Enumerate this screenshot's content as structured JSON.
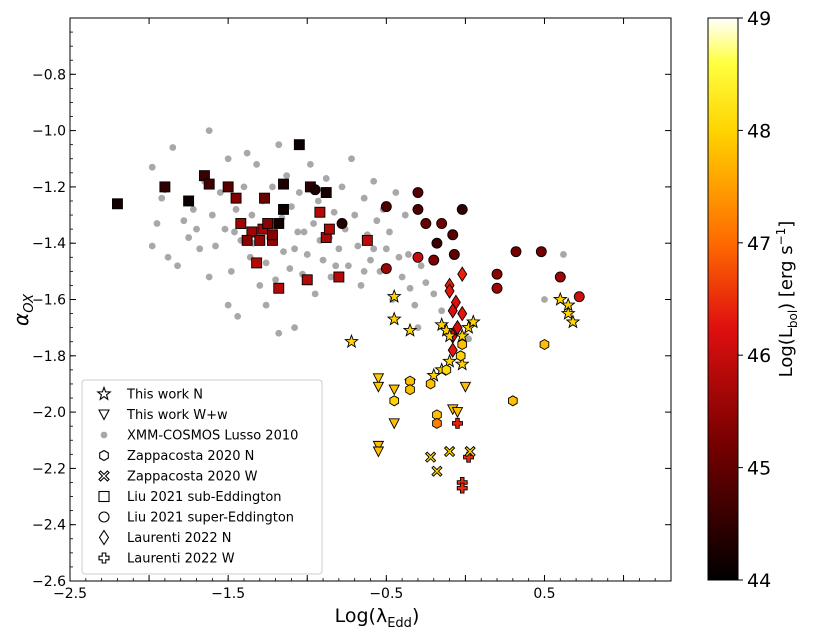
{
  "chart_data": {
    "type": "scatter",
    "title": "",
    "xlabel_main": "Log(λ",
    "xlabel_sub": "Edd",
    "xlabel_close": ")",
    "ylabel_main": "α",
    "ylabel_sub": "OX",
    "xlim": [
      -2.5,
      1.3
    ],
    "ylim": [
      -2.6,
      -0.6
    ],
    "x_ticks": [
      -2.5,
      -2.0,
      -1.5,
      -1.0,
      -0.5,
      0.0,
      0.5,
      1.0
    ],
    "x_tick_labels": [
      "−2.5",
      "",
      "−1.5",
      "",
      "−0.5",
      "",
      "0.5",
      ""
    ],
    "y_ticks": [
      -2.6,
      -2.4,
      -2.2,
      -2.0,
      -1.8,
      -1.6,
      -1.4,
      -1.2,
      -1.0,
      -0.8
    ],
    "y_tick_labels": [
      "−2.6",
      "−2.4",
      "−2.2",
      "−2.0",
      "−1.8",
      "−1.6",
      "−1.4",
      "−1.2",
      "−1.0",
      "−0.8"
    ],
    "colorbar": {
      "label_main": "Log(L",
      "label_sub": "bol",
      "label_close": ") [erg s",
      "label_sup": "−1",
      "label_end": "]",
      "range": [
        44,
        49
      ],
      "ticks": [
        44,
        45,
        46,
        47,
        48,
        49
      ],
      "tick_labels": [
        "44",
        "45",
        "46",
        "47",
        "48",
        "49"
      ]
    },
    "legend": {
      "position": "lower-left",
      "entries": [
        {
          "label": "This work N",
          "marker": "star"
        },
        {
          "label": "This work W+w",
          "marker": "triangle-down"
        },
        {
          "label": "XMM-COSMOS Lusso 2010",
          "marker": "circle-gray"
        },
        {
          "label": "Zappacosta 2020 N",
          "marker": "hexagon"
        },
        {
          "label": "Zappacosta 2020 W",
          "marker": "x-cross"
        },
        {
          "label": "Liu 2021 sub-Eddington",
          "marker": "square"
        },
        {
          "label": "Liu 2021 super-Eddington",
          "marker": "circle"
        },
        {
          "label": "Laurenti 2022 N",
          "marker": "diamond"
        },
        {
          "label": "Laurenti 2022 W",
          "marker": "plus"
        }
      ]
    },
    "series": [
      {
        "name": "XMM-COSMOS Lusso 2010",
        "marker": "circle-gray",
        "color": "#a8a8a8",
        "points": [
          [
            -1.85,
            -1.06
          ],
          [
            -1.78,
            -1.32
          ],
          [
            -1.9,
            -1.21
          ],
          [
            -1.95,
            -1.33
          ],
          [
            -1.98,
            -1.41
          ],
          [
            -1.88,
            -1.45
          ],
          [
            -1.82,
            -1.48
          ],
          [
            -1.75,
            -1.38
          ],
          [
            -1.72,
            -1.28
          ],
          [
            -1.7,
            -1.35
          ],
          [
            -1.68,
            -1.42
          ],
          [
            -1.65,
            -1.18
          ],
          [
            -1.62,
            -1.52
          ],
          [
            -1.6,
            -1.3
          ],
          [
            -1.58,
            -1.41
          ],
          [
            -1.55,
            -1.22
          ],
          [
            -1.52,
            -1.35
          ],
          [
            -1.5,
            -1.1
          ],
          [
            -1.48,
            -1.5
          ],
          [
            -1.45,
            -1.28
          ],
          [
            -1.42,
            -1.39
          ],
          [
            -1.4,
            -1.2
          ],
          [
            -1.38,
            -1.08
          ],
          [
            -1.36,
            -1.45
          ],
          [
            -1.35,
            -1.3
          ],
          [
            -1.32,
            -1.12
          ],
          [
            -1.3,
            -1.55
          ],
          [
            -1.28,
            -1.25
          ],
          [
            -1.26,
            -1.47
          ],
          [
            -1.24,
            -1.38
          ],
          [
            -1.22,
            -1.2
          ],
          [
            -1.2,
            -1.53
          ],
          [
            -1.18,
            -1.05
          ],
          [
            -1.16,
            -1.31
          ],
          [
            -1.15,
            -1.43
          ],
          [
            -1.13,
            -1.16
          ],
          [
            -1.11,
            -1.49
          ],
          [
            -1.1,
            -1.27
          ],
          [
            -1.08,
            -1.42
          ],
          [
            -1.06,
            -1.36
          ],
          [
            -1.05,
            -1.22
          ],
          [
            -1.03,
            -1.51
          ],
          [
            -1.0,
            -1.44
          ],
          [
            -0.98,
            -1.12
          ],
          [
            -0.96,
            -1.33
          ],
          [
            -0.95,
            -1.58
          ],
          [
            -0.93,
            -1.25
          ],
          [
            -0.9,
            -1.46
          ],
          [
            -0.88,
            -1.17
          ],
          [
            -0.86,
            -1.38
          ],
          [
            -0.85,
            -1.52
          ],
          [
            -0.83,
            -1.29
          ],
          [
            -0.8,
            -1.42
          ],
          [
            -0.78,
            -1.2
          ],
          [
            -0.76,
            -1.35
          ],
          [
            -0.74,
            -1.48
          ],
          [
            -0.72,
            -1.1
          ],
          [
            -0.7,
            -1.3
          ],
          [
            -0.68,
            -1.41
          ],
          [
            -0.66,
            -1.55
          ],
          [
            -0.64,
            -1.24
          ],
          [
            -0.62,
            -1.37
          ],
          [
            -0.6,
            -1.46
          ],
          [
            -0.58,
            -1.18
          ],
          [
            -0.56,
            -1.32
          ],
          [
            -0.54,
            -1.5
          ],
          [
            -0.52,
            -1.28
          ],
          [
            -0.5,
            -1.42
          ],
          [
            -0.48,
            -1.36
          ],
          [
            -0.46,
            -1.6
          ],
          [
            -0.44,
            -1.22
          ],
          [
            -0.42,
            -1.45
          ],
          [
            -0.4,
            -1.52
          ],
          [
            -0.38,
            -1.3
          ],
          [
            -0.35,
            -1.56
          ],
          [
            -0.32,
            -1.62
          ],
          [
            -0.28,
            -1.48
          ],
          [
            -0.25,
            -1.54
          ],
          [
            -0.2,
            -1.58
          ],
          [
            -0.15,
            -1.64
          ],
          [
            -1.44,
            -1.66
          ],
          [
            -1.26,
            -1.62
          ],
          [
            -1.18,
            -1.72
          ],
          [
            -1.08,
            -1.7
          ],
          [
            -1.5,
            -1.62
          ],
          [
            -0.3,
            -1.7
          ],
          [
            0.02,
            -1.74
          ],
          [
            0.5,
            -1.6
          ],
          [
            0.62,
            -1.44
          ],
          [
            -1.62,
            -1.0
          ],
          [
            -1.98,
            -1.13
          ],
          [
            -1.92,
            -1.24
          ],
          [
            -1.46,
            -1.36
          ],
          [
            -1.34,
            -1.4
          ],
          [
            -1.02,
            -1.36
          ],
          [
            -0.92,
            -1.39
          ],
          [
            -0.82,
            -1.48
          ],
          [
            -0.64,
            -1.5
          ],
          [
            -0.58,
            -1.42
          ],
          [
            -0.36,
            -1.44
          ]
        ]
      },
      {
        "name": "Liu 2021 sub-Eddington",
        "marker": "square",
        "points": [
          [
            -2.2,
            -1.26,
            44.2
          ],
          [
            -1.9,
            -1.2,
            44.5
          ],
          [
            -1.75,
            -1.25,
            44.1
          ],
          [
            -1.65,
            -1.16,
            44.6
          ],
          [
            -1.62,
            -1.19,
            44.7
          ],
          [
            -1.5,
            -1.2,
            44.9
          ],
          [
            -1.45,
            -1.24,
            45.3
          ],
          [
            -1.42,
            -1.33,
            45.6
          ],
          [
            -1.35,
            -1.36,
            45.6
          ],
          [
            -1.38,
            -1.39,
            45.4
          ],
          [
            -1.3,
            -1.39,
            45.5
          ],
          [
            -1.28,
            -1.35,
            45.7
          ],
          [
            -1.25,
            -1.33,
            45.4
          ],
          [
            -1.22,
            -1.39,
            45.5
          ],
          [
            -1.18,
            -1.33,
            44.2
          ],
          [
            -1.15,
            -1.28,
            44.1
          ],
          [
            -1.15,
            -1.19,
            44.3
          ],
          [
            -1.05,
            -1.05,
            44.1
          ],
          [
            -0.98,
            -1.2,
            44.5
          ],
          [
            -0.88,
            -1.22,
            44.2
          ],
          [
            -1.32,
            -1.47,
            45.8
          ],
          [
            -1.18,
            -1.56,
            45.8
          ],
          [
            -1.0,
            -1.53,
            45.8
          ],
          [
            -0.92,
            -1.29,
            45.8
          ],
          [
            -0.88,
            -1.38,
            45.7
          ],
          [
            -0.8,
            -1.52,
            45.8
          ],
          [
            -0.62,
            -1.39,
            45.9
          ],
          [
            -0.86,
            -1.35,
            45.8
          ],
          [
            -1.27,
            -1.24,
            45.1
          ],
          [
            -1.22,
            -1.37,
            45.3
          ]
        ]
      },
      {
        "name": "Liu 2021 super-Eddington",
        "marker": "circle",
        "points": [
          [
            -0.95,
            -1.21,
            44.3
          ],
          [
            -0.78,
            -1.33,
            44.4
          ],
          [
            -0.5,
            -1.27,
            44.8
          ],
          [
            -0.5,
            -1.49,
            45.6
          ],
          [
            -0.3,
            -1.22,
            44.9
          ],
          [
            -0.3,
            -1.28,
            44.8
          ],
          [
            -0.25,
            -1.33,
            45.1
          ],
          [
            -0.18,
            -1.4,
            44.6
          ],
          [
            -0.2,
            -1.46,
            45.3
          ],
          [
            -0.3,
            -1.45,
            46.0
          ],
          [
            -0.02,
            -1.28,
            44.5
          ],
          [
            -0.08,
            -1.37,
            44.9
          ],
          [
            -0.07,
            -1.44,
            45.0
          ],
          [
            0.2,
            -1.51,
            45.4
          ],
          [
            0.2,
            -1.56,
            45.6
          ],
          [
            0.32,
            -1.43,
            45.2
          ],
          [
            0.48,
            -1.43,
            45.2
          ],
          [
            0.6,
            -1.52,
            45.6
          ],
          [
            0.72,
            -1.59,
            46.1
          ],
          [
            -0.15,
            -1.33,
            45.2
          ]
        ]
      },
      {
        "name": "Laurenti 2022 N",
        "marker": "diamond",
        "points": [
          [
            -0.02,
            -1.51,
            46.4
          ],
          [
            -0.1,
            -1.55,
            46.4
          ],
          [
            -0.1,
            -1.57,
            46.3
          ],
          [
            -0.06,
            -1.61,
            46.2
          ],
          [
            -0.08,
            -1.64,
            46.2
          ],
          [
            -0.02,
            -1.65,
            46.3
          ],
          [
            -0.05,
            -1.7,
            46.1
          ],
          [
            -0.08,
            -1.73,
            46.2
          ],
          [
            -0.08,
            -1.78,
            46.3
          ]
        ]
      },
      {
        "name": "Laurenti 2022 W",
        "marker": "plus",
        "points": [
          [
            -0.05,
            -2.04,
            46.4
          ],
          [
            0.02,
            -2.16,
            46.5
          ],
          [
            -0.02,
            -2.25,
            46.5
          ],
          [
            -0.02,
            -2.27,
            46.5
          ]
        ]
      },
      {
        "name": "This work N",
        "marker": "star",
        "points": [
          [
            -0.72,
            -1.75,
            48.0
          ],
          [
            -0.45,
            -1.59,
            48.0
          ],
          [
            -0.45,
            -1.67,
            48.0
          ],
          [
            -0.35,
            -1.71,
            48.0
          ],
          [
            -0.15,
            -1.69,
            48.0
          ],
          [
            -0.12,
            -1.71,
            48.0
          ],
          [
            -0.1,
            -1.73,
            48.0
          ],
          [
            -0.1,
            -1.82,
            48.0
          ],
          [
            -0.15,
            -1.85,
            48.0
          ],
          [
            -0.2,
            -1.87,
            48.0
          ],
          [
            -0.02,
            -1.73,
            48.0
          ],
          [
            0.02,
            -1.7,
            48.0
          ],
          [
            0.05,
            -1.68,
            48.0
          ],
          [
            0.6,
            -1.6,
            48.0
          ],
          [
            0.65,
            -1.62,
            48.0
          ],
          [
            0.65,
            -1.65,
            48.0
          ],
          [
            0.68,
            -1.68,
            48.0
          ],
          [
            -0.02,
            -1.83,
            48.0
          ]
        ]
      },
      {
        "name": "This work W+w",
        "marker": "triangle-down",
        "points": [
          [
            -0.55,
            -1.88,
            47.9
          ],
          [
            -0.55,
            -1.91,
            47.9
          ],
          [
            -0.45,
            -1.92,
            47.8
          ],
          [
            -0.35,
            -1.9,
            47.9
          ],
          [
            -0.08,
            -1.99,
            47.8
          ],
          [
            -0.05,
            -2.0,
            47.8
          ],
          [
            0.0,
            -1.91,
            47.8
          ],
          [
            -0.45,
            -2.04,
            47.8
          ],
          [
            -0.55,
            -2.12,
            47.8
          ],
          [
            -0.55,
            -2.14,
            47.8
          ]
        ]
      },
      {
        "name": "Zappacosta 2020 N",
        "marker": "hexagon",
        "points": [
          [
            -0.45,
            -1.96,
            48.0
          ],
          [
            -0.35,
            -1.89,
            47.8
          ],
          [
            -0.35,
            -1.92,
            47.8
          ],
          [
            -0.22,
            -1.9,
            47.8
          ],
          [
            -0.18,
            -2.01,
            47.8
          ],
          [
            -0.18,
            -2.04,
            47.2
          ],
          [
            -0.12,
            -1.85,
            48.1
          ],
          [
            -0.03,
            -1.8,
            48.0
          ],
          [
            -0.02,
            -1.76,
            47.8
          ],
          [
            0.5,
            -1.76,
            47.8
          ],
          [
            0.3,
            -1.96,
            47.8
          ]
        ]
      },
      {
        "name": "Zappacosta 2020 W",
        "marker": "x-cross",
        "points": [
          [
            -0.22,
            -2.16,
            48.0
          ],
          [
            -0.18,
            -2.21,
            48.0
          ],
          [
            -0.1,
            -2.14,
            48.0
          ],
          [
            0.03,
            -2.14,
            48.0
          ]
        ]
      }
    ]
  }
}
